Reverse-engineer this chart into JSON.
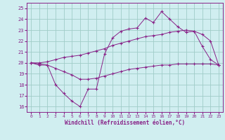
{
  "xlabel": "Windchill (Refroidissement éolien,°C)",
  "xlim": [
    -0.5,
    23.5
  ],
  "ylim": [
    15.5,
    25.5
  ],
  "xticks": [
    0,
    1,
    2,
    3,
    4,
    5,
    6,
    7,
    8,
    9,
    10,
    11,
    12,
    13,
    14,
    15,
    16,
    17,
    18,
    19,
    20,
    21,
    22,
    23
  ],
  "yticks": [
    16,
    17,
    18,
    19,
    20,
    21,
    22,
    23,
    24,
    25
  ],
  "bg_color": "#d0eef0",
  "line_color": "#882288",
  "grid_color": "#a0ccc8",
  "hours": [
    0,
    1,
    2,
    3,
    4,
    5,
    6,
    7,
    8,
    9,
    10,
    11,
    12,
    13,
    14,
    15,
    16,
    17,
    18,
    19,
    20,
    21,
    22,
    23
  ],
  "line1_data": [
    20.0,
    19.8,
    19.8,
    18.0,
    17.2,
    16.5,
    16.0,
    17.6,
    17.6,
    20.8,
    22.3,
    22.9,
    23.1,
    23.2,
    24.1,
    23.7,
    24.7,
    24.0,
    23.3,
    22.8,
    22.9,
    21.5,
    20.3,
    19.8
  ],
  "line2_data": [
    20.0,
    20.0,
    20.1,
    20.3,
    20.5,
    20.6,
    20.7,
    20.9,
    21.1,
    21.3,
    21.6,
    21.8,
    22.0,
    22.2,
    22.4,
    22.5,
    22.6,
    22.8,
    22.9,
    23.0,
    22.9,
    22.6,
    22.0,
    19.8
  ],
  "line3_data": [
    20.0,
    19.9,
    19.8,
    19.5,
    19.2,
    18.9,
    18.5,
    18.5,
    18.6,
    18.8,
    19.0,
    19.2,
    19.4,
    19.5,
    19.6,
    19.7,
    19.8,
    19.8,
    19.9,
    19.9,
    19.9,
    19.9,
    19.9,
    19.8
  ]
}
